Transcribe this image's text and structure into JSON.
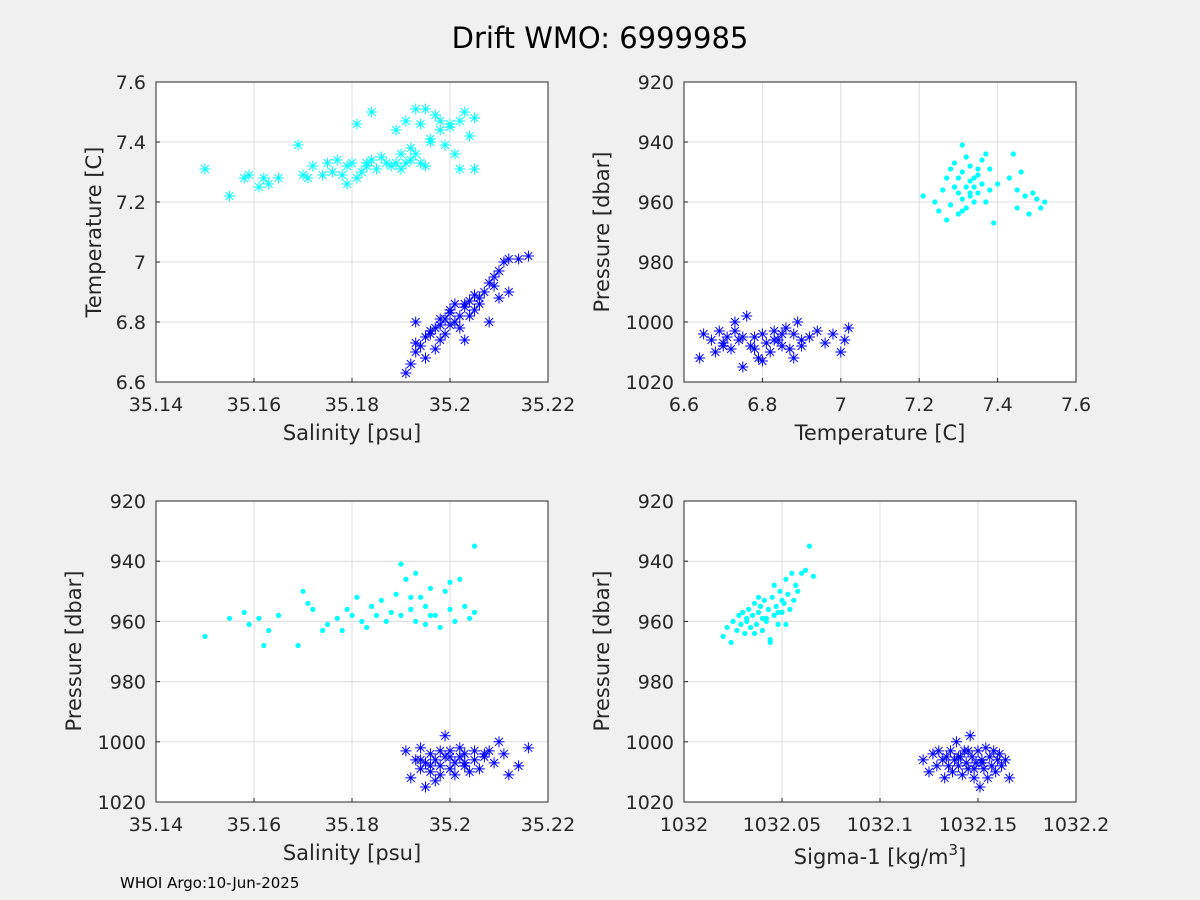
{
  "figure": {
    "title": "Drift WMO: 6999985",
    "footer": "WHOI Argo:10-Jun-2025",
    "background": "#f0f0f0",
    "axes_background": "#ffffff",
    "grid_color": "#dcdcdc",
    "colors": {
      "cyan_series": "#00ffff",
      "blue_series": "#0000ff"
    }
  },
  "chart_data": [
    {
      "type": "scatter",
      "xlabel": "Salinity [psu]",
      "ylabel": "Temperature [C]",
      "xlim": [
        35.14,
        35.22
      ],
      "ylim": [
        6.6,
        7.6
      ],
      "y_reversed": false,
      "grid": true,
      "xticks": [
        "35.14",
        "35.16",
        "35.18",
        "35.2",
        "35.22"
      ],
      "yticks": [
        "6.6",
        "6.8",
        "7",
        "7.2",
        "7.4",
        "7.6"
      ],
      "series": [
        {
          "color": "#00ffff",
          "marker": "asterisk",
          "x": [
            35.15,
            35.155,
            35.158,
            35.159,
            35.161,
            35.162,
            35.163,
            35.165,
            35.169,
            35.17,
            35.171,
            35.172,
            35.174,
            35.175,
            35.176,
            35.177,
            35.178,
            35.179,
            35.179,
            35.18,
            35.181,
            35.181,
            35.182,
            35.183,
            35.183,
            35.184,
            35.185,
            35.186,
            35.187,
            35.188,
            35.189,
            35.19,
            35.19,
            35.191,
            35.191,
            35.192,
            35.193,
            35.193,
            35.194,
            35.194,
            35.195,
            35.195,
            35.196,
            35.197,
            35.198,
            35.199,
            35.2,
            35.2,
            35.201,
            35.202,
            35.202,
            35.203,
            35.204,
            35.205,
            35.205,
            35.184,
            35.189,
            35.192,
            35.196,
            35.198
          ],
          "y": [
            7.31,
            7.22,
            7.28,
            7.29,
            7.25,
            7.28,
            7.26,
            7.28,
            7.39,
            7.29,
            7.28,
            7.32,
            7.29,
            7.33,
            7.3,
            7.34,
            7.29,
            7.32,
            7.26,
            7.33,
            7.28,
            7.46,
            7.3,
            7.33,
            7.32,
            7.5,
            7.31,
            7.35,
            7.33,
            7.32,
            7.44,
            7.36,
            7.31,
            7.33,
            7.47,
            7.34,
            7.51,
            7.36,
            7.33,
            7.46,
            7.32,
            7.51,
            7.41,
            7.49,
            7.47,
            7.39,
            7.45,
            7.46,
            7.36,
            7.47,
            7.31,
            7.5,
            7.42,
            7.48,
            7.31,
            7.34,
            7.33,
            7.38,
            7.4,
            7.44
          ]
        },
        {
          "color": "#0000ff",
          "marker": "asterisk",
          "x": [
            35.191,
            35.192,
            35.193,
            35.193,
            35.194,
            35.195,
            35.195,
            35.196,
            35.197,
            35.197,
            35.198,
            35.198,
            35.199,
            35.199,
            35.2,
            35.2,
            35.201,
            35.201,
            35.202,
            35.202,
            35.203,
            35.203,
            35.204,
            35.204,
            35.205,
            35.205,
            35.206,
            35.207,
            35.208,
            35.208,
            35.209,
            35.21,
            35.21,
            35.211,
            35.212,
            35.214,
            35.216,
            35.193,
            35.196,
            35.198,
            35.2,
            35.203,
            35.206,
            35.209,
            35.212
          ],
          "y": [
            6.63,
            6.66,
            6.7,
            6.8,
            6.72,
            6.75,
            6.68,
            6.76,
            6.78,
            6.71,
            6.79,
            6.74,
            6.81,
            6.76,
            6.83,
            6.79,
            6.8,
            6.86,
            6.82,
            6.78,
            6.86,
            6.74,
            6.87,
            6.82,
            6.89,
            6.84,
            6.86,
            6.9,
            6.93,
            6.8,
            6.95,
            6.97,
            6.88,
            7.0,
            7.01,
            7.01,
            7.02,
            6.73,
            6.77,
            6.81,
            6.84,
            6.85,
            6.88,
            6.92,
            6.9
          ]
        }
      ]
    },
    {
      "type": "scatter",
      "xlabel": "Temperature [C]",
      "ylabel": "Pressure [dbar]",
      "xlim": [
        6.6,
        7.6
      ],
      "ylim": [
        920,
        1020
      ],
      "y_reversed": true,
      "grid": true,
      "xticks": [
        "6.6",
        "6.8",
        "7",
        "7.2",
        "7.4",
        "7.6"
      ],
      "yticks": [
        "920",
        "940",
        "960",
        "980",
        "1000",
        "1020"
      ],
      "series": [
        {
          "color": "#00ffff",
          "marker": "dot",
          "x": [
            7.21,
            7.24,
            7.25,
            7.26,
            7.27,
            7.27,
            7.28,
            7.28,
            7.29,
            7.29,
            7.3,
            7.3,
            7.3,
            7.31,
            7.31,
            7.31,
            7.32,
            7.32,
            7.32,
            7.33,
            7.33,
            7.33,
            7.34,
            7.34,
            7.34,
            7.35,
            7.35,
            7.36,
            7.36,
            7.37,
            7.37,
            7.38,
            7.38,
            7.39,
            7.4,
            7.43,
            7.44,
            7.45,
            7.45,
            7.46,
            7.47,
            7.48,
            7.49,
            7.5,
            7.51,
            7.52,
            7.29,
            7.33,
            7.35,
            7.31
          ],
          "y": [
            958,
            960,
            963,
            956,
            952,
            966,
            949,
            961,
            955,
            947,
            957,
            952,
            964,
            950,
            941,
            959,
            955,
            945,
            962,
            953,
            958,
            948,
            952,
            960,
            955,
            951,
            957,
            946,
            954,
            960,
            944,
            956,
            949,
            967,
            954,
            952,
            944,
            956,
            962,
            950,
            958,
            964,
            957,
            959,
            962,
            960,
            955,
            957,
            949,
            963
          ]
        },
        {
          "color": "#0000ff",
          "marker": "asterisk",
          "x": [
            6.64,
            6.65,
            6.67,
            6.68,
            6.69,
            6.7,
            6.71,
            6.72,
            6.73,
            6.74,
            6.75,
            6.76,
            6.77,
            6.78,
            6.79,
            6.8,
            6.81,
            6.82,
            6.83,
            6.84,
            6.85,
            6.86,
            6.87,
            6.88,
            6.89,
            6.9,
            6.92,
            6.94,
            6.96,
            6.98,
            7.0,
            7.01,
            7.02,
            6.7,
            6.75,
            6.8,
            6.85,
            6.9,
            6.73,
            6.78,
            6.83,
            6.88
          ],
          "y": [
            1012,
            1004,
            1006,
            1010,
            1003,
            1007,
            1005,
            1009,
            1003,
            1006,
            1015,
            998,
            1008,
            1005,
            1012,
            1004,
            1007,
            1010,
            1003,
            1006,
            1008,
            1002,
            1009,
            1004,
            1000,
            1006,
            1005,
            1003,
            1007,
            1004,
            1010,
            1006,
            1002,
            1008,
            1005,
            1013,
            1004,
            1008,
            1000,
            1009,
            1006,
            1012
          ]
        }
      ]
    },
    {
      "type": "scatter",
      "xlabel": "Salinity [psu]",
      "ylabel": "Pressure [dbar]",
      "xlim": [
        35.14,
        35.22
      ],
      "ylim": [
        920,
        1020
      ],
      "y_reversed": true,
      "grid": true,
      "xticks": [
        "35.14",
        "35.16",
        "35.18",
        "35.2",
        "35.22"
      ],
      "yticks": [
        "920",
        "940",
        "960",
        "980",
        "1000",
        "1020"
      ],
      "series": [
        {
          "color": "#00ffff",
          "marker": "dot",
          "x": [
            35.15,
            35.155,
            35.158,
            35.159,
            35.161,
            35.162,
            35.163,
            35.165,
            35.169,
            35.17,
            35.171,
            35.172,
            35.174,
            35.175,
            35.177,
            35.178,
            35.179,
            35.18,
            35.181,
            35.182,
            35.183,
            35.184,
            35.185,
            35.186,
            35.187,
            35.188,
            35.189,
            35.19,
            35.19,
            35.191,
            35.192,
            35.193,
            35.193,
            35.194,
            35.195,
            35.195,
            35.196,
            35.197,
            35.198,
            35.199,
            35.2,
            35.2,
            35.201,
            35.202,
            35.203,
            35.204,
            35.205,
            35.205,
            35.192,
            35.196
          ],
          "y": [
            965,
            959,
            957,
            961,
            959,
            968,
            963,
            958,
            968,
            950,
            954,
            956,
            963,
            961,
            959,
            963,
            956,
            958,
            952,
            960,
            962,
            955,
            958,
            953,
            960,
            957,
            951,
            941,
            958,
            946,
            956,
            944,
            960,
            952,
            955,
            961,
            949,
            958,
            962,
            950,
            947,
            956,
            960,
            946,
            955,
            959,
            935,
            957,
            952,
            958
          ]
        },
        {
          "color": "#0000ff",
          "marker": "asterisk",
          "x": [
            35.191,
            35.192,
            35.193,
            35.194,
            35.194,
            35.195,
            35.195,
            35.196,
            35.196,
            35.197,
            35.197,
            35.198,
            35.198,
            35.199,
            35.199,
            35.2,
            35.2,
            35.201,
            35.201,
            35.202,
            35.202,
            35.203,
            35.203,
            35.204,
            35.205,
            35.205,
            35.206,
            35.207,
            35.208,
            35.209,
            35.21,
            35.211,
            35.212,
            35.214,
            35.216,
            35.194,
            35.196,
            35.198,
            35.2,
            35.203,
            35.207
          ],
          "y": [
            1003,
            1012,
            1006,
            1009,
            1002,
            1015,
            1007,
            1004,
            1010,
            1006,
            1013,
            1003,
            1008,
            998,
            1005,
            1009,
            1003,
            1007,
            1011,
            1005,
            1002,
            1008,
            1004,
            1010,
            1006,
            1003,
            1009,
            1005,
            1003,
            1007,
            1000,
            1004,
            1011,
            1008,
            1002,
            1006,
            1008,
            1011,
            1005,
            1007,
            1004
          ]
        }
      ]
    },
    {
      "type": "scatter",
      "xlabel": "Sigma-1 [kg/m3]",
      "ylabel": "Pressure [dbar]",
      "xlim": [
        1032,
        1032.2
      ],
      "ylim": [
        920,
        1020
      ],
      "y_reversed": true,
      "grid": true,
      "xticks": [
        "1032",
        "1032.05",
        "1032.1",
        "1032.15",
        "1032.2"
      ],
      "yticks": [
        "920",
        "940",
        "960",
        "980",
        "1000",
        "1020"
      ],
      "series": [
        {
          "color": "#00ffff",
          "marker": "dot",
          "x": [
            1032.02,
            1032.022,
            1032.024,
            1032.025,
            1032.027,
            1032.028,
            1032.029,
            1032.03,
            1032.031,
            1032.032,
            1032.033,
            1032.034,
            1032.035,
            1032.036,
            1032.037,
            1032.038,
            1032.039,
            1032.04,
            1032.041,
            1032.042,
            1032.043,
            1032.044,
            1032.045,
            1032.046,
            1032.047,
            1032.048,
            1032.049,
            1032.05,
            1032.051,
            1032.052,
            1032.053,
            1032.054,
            1032.055,
            1032.056,
            1032.057,
            1032.058,
            1032.06,
            1032.062,
            1032.064,
            1032.066,
            1032.032,
            1032.036,
            1032.04,
            1032.044,
            1032.048,
            1032.052,
            1032.038,
            1032.046,
            1032.05,
            1032.042
          ],
          "y": [
            965,
            962,
            967,
            960,
            963,
            958,
            961,
            957,
            964,
            959,
            956,
            962,
            958,
            954,
            961,
            957,
            955,
            963,
            953,
            959,
            956,
            967,
            952,
            958,
            955,
            961,
            950,
            957,
            954,
            946,
            951,
            956,
            944,
            953,
            948,
            950,
            944,
            943,
            935,
            945,
            960,
            964,
            959,
            966,
            957,
            961,
            952,
            948,
            953,
            960
          ]
        },
        {
          "color": "#0000ff",
          "marker": "asterisk",
          "x": [
            1032.122,
            1032.125,
            1032.127,
            1032.129,
            1032.13,
            1032.132,
            1032.133,
            1032.134,
            1032.135,
            1032.136,
            1032.137,
            1032.138,
            1032.139,
            1032.14,
            1032.141,
            1032.142,
            1032.143,
            1032.144,
            1032.145,
            1032.146,
            1032.147,
            1032.148,
            1032.149,
            1032.15,
            1032.151,
            1032.152,
            1032.153,
            1032.154,
            1032.155,
            1032.156,
            1032.157,
            1032.158,
            1032.159,
            1032.16,
            1032.161,
            1032.162,
            1032.164,
            1032.166,
            1032.14,
            1032.148,
            1032.152,
            1032.145
          ],
          "y": [
            1006,
            1010,
            1004,
            1008,
            1003,
            1006,
            1012,
            1005,
            1008,
            1003,
            1010,
            1006,
            1000,
            1008,
            1005,
            1011,
            1003,
            1007,
            1009,
            998,
            1005,
            1012,
            1007,
            1003,
            1015,
            1006,
            1009,
            1002,
            1012,
            1005,
            1008,
            1003,
            1010,
            1006,
            1004,
            1008,
            1006,
            1012,
            1005,
            1009,
            1007,
            1003
          ]
        }
      ]
    }
  ]
}
